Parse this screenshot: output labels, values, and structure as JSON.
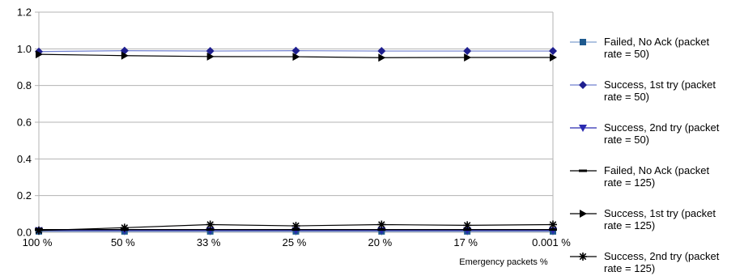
{
  "chart_data": {
    "type": "line",
    "categories": [
      "100 %",
      "50 %",
      "33 %",
      "25 %",
      "20 %",
      "17 %",
      "0.001 %"
    ],
    "xlabel": "Emergency packets %",
    "ylabel": "",
    "title": "",
    "ylim": [
      0,
      1.2
    ],
    "yticks": [
      "0.0",
      "0.2",
      "0.4",
      "0.6",
      "0.8",
      "1.0",
      "1.2"
    ],
    "grid": "horizontal",
    "legend_position": "right",
    "series": [
      {
        "name": "Failed, No Ack (packet rate = 50)",
        "color": "#1f5a8f",
        "line_color": "#7f9fcf",
        "marker": "square",
        "values": [
          0.005,
          0.005,
          0.005,
          0.005,
          0.005,
          0.005,
          0.005
        ]
      },
      {
        "name": "Success, 1st try (packet rate = 50)",
        "color": "#1f1f8f",
        "line_color": "#6f7fcf",
        "marker": "diamond",
        "values": [
          0.985,
          0.99,
          0.988,
          0.99,
          0.988,
          0.988,
          0.988
        ]
      },
      {
        "name": "Success, 2nd try (packet rate = 50)",
        "color": "#2a2ab0",
        "line_color": "#2a2ab0",
        "marker": "triangle-down",
        "values": [
          0.01,
          0.01,
          0.01,
          0.01,
          0.01,
          0.01,
          0.01
        ]
      },
      {
        "name": "Failed, No Ack (packet rate = 125)",
        "color": "#000000",
        "line_color": "#000000",
        "marker": "dash",
        "values": [
          0.015,
          0.015,
          0.015,
          0.015,
          0.015,
          0.015,
          0.015
        ]
      },
      {
        "name": "Success, 1st try (packet rate = 125)",
        "color": "#000000",
        "line_color": "#000000",
        "marker": "triangle-right",
        "values": [
          0.97,
          0.963,
          0.958,
          0.957,
          0.952,
          0.953,
          0.953
        ]
      },
      {
        "name": "Success, 2nd try (packet rate = 125)",
        "color": "#000000",
        "line_color": "#000000",
        "marker": "star",
        "values": [
          0.01,
          0.025,
          0.042,
          0.035,
          0.042,
          0.038,
          0.042
        ]
      }
    ]
  }
}
